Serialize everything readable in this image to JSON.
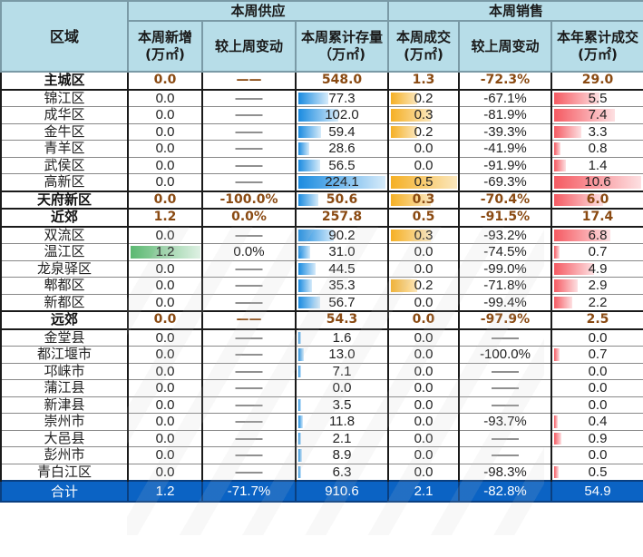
{
  "header": {
    "region": "区域",
    "supply_group": "本周供应",
    "sales_group": "本周销售",
    "cols": {
      "supply_new": "本周新增(万㎡)",
      "supply_change": "较上周变动",
      "stock": "本周累计存量（万㎡)",
      "deal": "本周成交(万㎡)",
      "deal_change": "较上周变动",
      "ytd": "本年累计成交(万㎡)"
    }
  },
  "colors": {
    "header_bg": "#b7dde8",
    "group_text": "#8a4a12",
    "total_bg": "#0b63c4",
    "stock_bar": "#1a8be0",
    "deal_bar": "#f5b025",
    "ytd_bar": "#f55a62",
    "supply_bar": "#5bb871"
  },
  "rows": [
    {
      "name": "主城区",
      "group": true,
      "new": "0.0",
      "new_chg": "——",
      "stock": "548.0",
      "deal": "1.3",
      "deal_chg": "-72.3%",
      "ytd": "29.0"
    },
    {
      "name": "锦江区",
      "new": "0.0",
      "new_chg": "——",
      "stock": "77.3",
      "deal": "0.2",
      "deal_chg": "-67.1%",
      "ytd": "5.5"
    },
    {
      "name": "成华区",
      "new": "0.0",
      "new_chg": "——",
      "stock": "102.0",
      "deal": "0.3",
      "deal_chg": "-81.9%",
      "ytd": "7.4"
    },
    {
      "name": "金牛区",
      "new": "0.0",
      "new_chg": "——",
      "stock": "59.4",
      "deal": "0.2",
      "deal_chg": "-39.3%",
      "ytd": "3.3"
    },
    {
      "name": "青羊区",
      "new": "0.0",
      "new_chg": "——",
      "stock": "28.6",
      "deal": "0.0",
      "deal_chg": "-41.9%",
      "ytd": "0.8"
    },
    {
      "name": "武侯区",
      "new": "0.0",
      "new_chg": "——",
      "stock": "56.5",
      "deal": "0.0",
      "deal_chg": "-91.9%",
      "ytd": "1.4"
    },
    {
      "name": "高新区",
      "new": "0.0",
      "new_chg": "——",
      "stock": "224.1",
      "deal": "0.5",
      "deal_chg": "-69.3%",
      "ytd": "10.6"
    },
    {
      "name": "天府新区",
      "group": true,
      "new": "0.0",
      "new_chg": "-100.0%",
      "stock": "50.6",
      "deal": "0.3",
      "deal_chg": "-70.4%",
      "ytd": "6.0"
    },
    {
      "name": "近郊",
      "group": true,
      "new": "1.2",
      "new_chg": "0.0%",
      "stock": "257.8",
      "deal": "0.5",
      "deal_chg": "-91.5%",
      "ytd": "17.4"
    },
    {
      "name": "双流区",
      "new": "0.0",
      "new_chg": "——",
      "stock": "90.2",
      "deal": "0.3",
      "deal_chg": "-93.2%",
      "ytd": "6.8"
    },
    {
      "name": "温江区",
      "new": "1.2",
      "new_chg": "0.0%",
      "stock": "31.0",
      "deal": "0.0",
      "deal_chg": "-74.5%",
      "ytd": "0.7"
    },
    {
      "name": "龙泉驿区",
      "new": "0.0",
      "new_chg": "——",
      "stock": "44.5",
      "deal": "0.0",
      "deal_chg": "-99.0%",
      "ytd": "4.9"
    },
    {
      "name": "郫都区",
      "new": "0.0",
      "new_chg": "——",
      "stock": "35.3",
      "deal": "0.2",
      "deal_chg": "-71.8%",
      "ytd": "2.9"
    },
    {
      "name": "新都区",
      "new": "0.0",
      "new_chg": "——",
      "stock": "56.7",
      "deal": "0.0",
      "deal_chg": "-99.4%",
      "ytd": "2.2"
    },
    {
      "name": "远郊",
      "group": true,
      "new": "0.0",
      "new_chg": "——",
      "stock": "54.3",
      "deal": "0.0",
      "deal_chg": "-97.9%",
      "ytd": "2.5"
    },
    {
      "name": "金堂县",
      "new": "0.0",
      "new_chg": "——",
      "stock": "1.6",
      "deal": "0.0",
      "deal_chg": "——",
      "ytd": "0.0"
    },
    {
      "name": "都江堰市",
      "new": "0.0",
      "new_chg": "——",
      "stock": "13.0",
      "deal": "0.0",
      "deal_chg": "-100.0%",
      "ytd": "0.7"
    },
    {
      "name": "邛崃市",
      "new": "0.0",
      "new_chg": "——",
      "stock": "7.1",
      "deal": "0.0",
      "deal_chg": "——",
      "ytd": "0.0"
    },
    {
      "name": "蒲江县",
      "new": "0.0",
      "new_chg": "——",
      "stock": "0.0",
      "deal": "0.0",
      "deal_chg": "——",
      "ytd": "0.0"
    },
    {
      "name": "新津县",
      "new": "0.0",
      "new_chg": "——",
      "stock": "3.5",
      "deal": "0.0",
      "deal_chg": "——",
      "ytd": "0.0"
    },
    {
      "name": "崇州市",
      "new": "0.0",
      "new_chg": "——",
      "stock": "11.8",
      "deal": "0.0",
      "deal_chg": "-93.7%",
      "ytd": "0.4"
    },
    {
      "name": "大邑县",
      "new": "0.0",
      "new_chg": "——",
      "stock": "2.1",
      "deal": "0.0",
      "deal_chg": "——",
      "ytd": "0.9"
    },
    {
      "name": "彭州市",
      "new": "0.0",
      "new_chg": "——",
      "stock": "8.9",
      "deal": "0.0",
      "deal_chg": "——",
      "ytd": "0.0"
    },
    {
      "name": "青白江区",
      "new": "0.0",
      "new_chg": "——",
      "stock": "6.3",
      "deal": "0.0",
      "deal_chg": "-98.3%",
      "ytd": "0.5"
    }
  ],
  "total": {
    "name": "合计",
    "new": "1.2",
    "new_chg": "-71.7%",
    "stock": "910.6",
    "deal": "2.1",
    "deal_chg": "-82.8%",
    "ytd": "54.9"
  },
  "bar_scale": {
    "new_max": 1.2,
    "stock_max": 224.1,
    "deal_max": 0.5,
    "ytd_max": 10.6
  }
}
